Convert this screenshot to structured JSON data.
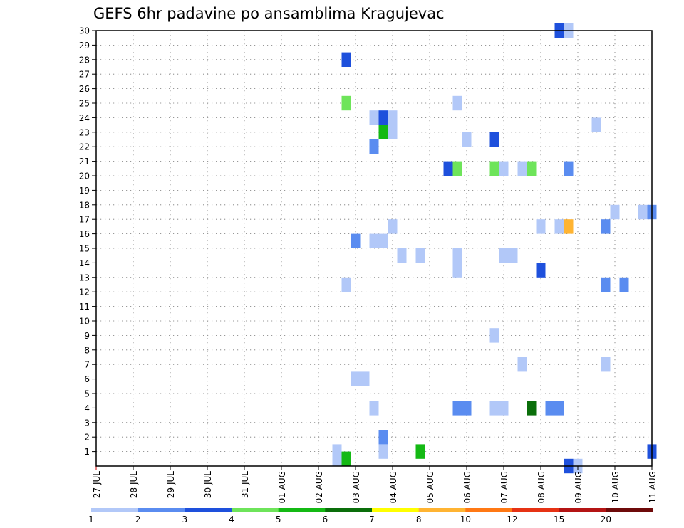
{
  "chart_data": {
    "type": "heatmap",
    "title": "GEFS 6hr padavine po ansamblima Kragujevac",
    "xlabel": "",
    "ylabel": "",
    "x_ticks": [
      "27 JUL",
      "28 JUL",
      "29 JUL",
      "30 JUL",
      "31 JUL",
      "01 AUG",
      "02 AUG",
      "03 AUG",
      "04 AUG",
      "05 AUG",
      "06 AUG",
      "07 AUG",
      "08 AUG",
      "09 AUG",
      "10 AUG",
      "11 AUG"
    ],
    "x_range_days": [
      0,
      15
    ],
    "y_ticks": [
      1,
      2,
      3,
      4,
      5,
      6,
      7,
      8,
      9,
      10,
      11,
      12,
      13,
      14,
      15,
      16,
      17,
      18,
      19,
      20,
      21,
      22,
      23,
      24,
      25,
      26,
      27,
      28,
      29,
      30
    ],
    "ylim": [
      0,
      30
    ],
    "grid": true,
    "legend": {
      "placement": "bottom",
      "colors": [
        "#b2c8f8",
        "#5a8cf0",
        "#1e50dc",
        "#6ee45a",
        "#14b914",
        "#0a6e0a",
        "#ffff00",
        "#ffb432",
        "#ff7814",
        "#e63214",
        "#b41414",
        "#6e0a0a"
      ],
      "labels": [
        "1",
        "2",
        "3",
        "4",
        "5",
        "6",
        "7",
        "8",
        "10",
        "12",
        "15",
        "20",
        ""
      ]
    },
    "cells": [
      {
        "d": 6.5,
        "m": 0.5,
        "c": 0
      },
      {
        "d": 6.5,
        "m": 1,
        "c": 0
      },
      {
        "d": 6.75,
        "m": 0.5,
        "c": 4
      },
      {
        "d": 6.75,
        "m": 12.5,
        "c": 0
      },
      {
        "d": 6.75,
        "m": 25,
        "c": 3
      },
      {
        "d": 6.75,
        "m": 28,
        "c": 2
      },
      {
        "d": 7,
        "m": 6,
        "c": 0
      },
      {
        "d": 7,
        "m": 15.5,
        "c": 1
      },
      {
        "d": 7.25,
        "m": 6,
        "c": 0
      },
      {
        "d": 7.5,
        "m": 4,
        "c": 0
      },
      {
        "d": 7.5,
        "m": 15.5,
        "c": 0
      },
      {
        "d": 7.5,
        "m": 22,
        "c": 1
      },
      {
        "d": 7.5,
        "m": 24,
        "c": 0
      },
      {
        "d": 7.75,
        "m": 1,
        "c": 0
      },
      {
        "d": 7.75,
        "m": 2,
        "c": 1
      },
      {
        "d": 7.75,
        "m": 15.5,
        "c": 0
      },
      {
        "d": 7.75,
        "m": 23,
        "c": 4
      },
      {
        "d": 7.75,
        "m": 24,
        "c": 2
      },
      {
        "d": 8,
        "m": 16.5,
        "c": 0
      },
      {
        "d": 8,
        "m": 23,
        "c": 0
      },
      {
        "d": 8,
        "m": 24,
        "c": 0
      },
      {
        "d": 8.25,
        "m": 14.5,
        "c": 0
      },
      {
        "d": 8.75,
        "m": 1,
        "c": 4
      },
      {
        "d": 8.75,
        "m": 14.5,
        "c": 0
      },
      {
        "d": 9.5,
        "m": 20.5,
        "c": 2
      },
      {
        "d": 9.75,
        "m": 4,
        "c": 1
      },
      {
        "d": 9.75,
        "m": 13.5,
        "c": 0
      },
      {
        "d": 9.75,
        "m": 14.5,
        "c": 0
      },
      {
        "d": 9.75,
        "m": 20.5,
        "c": 3
      },
      {
        "d": 9.75,
        "m": 25,
        "c": 0
      },
      {
        "d": 10,
        "m": 4,
        "c": 1
      },
      {
        "d": 10,
        "m": 22.5,
        "c": 0
      },
      {
        "d": 10.75,
        "m": 4,
        "c": 0
      },
      {
        "d": 10.75,
        "m": 9,
        "c": 0
      },
      {
        "d": 10.75,
        "m": 20.5,
        "c": 3
      },
      {
        "d": 10.75,
        "m": 22.5,
        "c": 2
      },
      {
        "d": 11,
        "m": 4,
        "c": 0
      },
      {
        "d": 11,
        "m": 14.5,
        "c": 0
      },
      {
        "d": 11,
        "m": 20.5,
        "c": 0
      },
      {
        "d": 11.25,
        "m": 14.5,
        "c": 0
      },
      {
        "d": 11.5,
        "m": 7,
        "c": 0
      },
      {
        "d": 11.5,
        "m": 20.5,
        "c": 0
      },
      {
        "d": 11.75,
        "m": 4,
        "c": 5
      },
      {
        "d": 11.75,
        "m": 20.5,
        "c": 3
      },
      {
        "d": 12,
        "m": 13.5,
        "c": 2
      },
      {
        "d": 12,
        "m": 16.5,
        "c": 0
      },
      {
        "d": 12.25,
        "m": 4,
        "c": 1
      },
      {
        "d": 12.5,
        "m": 4,
        "c": 1
      },
      {
        "d": 12.5,
        "m": 16.5,
        "c": 0
      },
      {
        "d": 12.5,
        "m": 30,
        "c": 2
      },
      {
        "d": 12.75,
        "m": 0,
        "c": 2
      },
      {
        "d": 12.75,
        "m": 16.5,
        "c": 7
      },
      {
        "d": 12.75,
        "m": 20.5,
        "c": 1
      },
      {
        "d": 12.75,
        "m": 30,
        "c": 0
      },
      {
        "d": 13,
        "m": 0,
        "c": 0
      },
      {
        "d": 13.5,
        "m": 23.5,
        "c": 0
      },
      {
        "d": 13.75,
        "m": 7,
        "c": 0
      },
      {
        "d": 13.75,
        "m": 12.5,
        "c": 1
      },
      {
        "d": 13.75,
        "m": 16.5,
        "c": 1
      },
      {
        "d": 14,
        "m": 17.5,
        "c": 0
      },
      {
        "d": 14.25,
        "m": 12.5,
        "c": 1
      },
      {
        "d": 14.75,
        "m": 17.5,
        "c": 0
      },
      {
        "d": 15,
        "m": 1,
        "c": 2
      },
      {
        "d": 15,
        "m": 17.5,
        "c": 1
      }
    ]
  }
}
